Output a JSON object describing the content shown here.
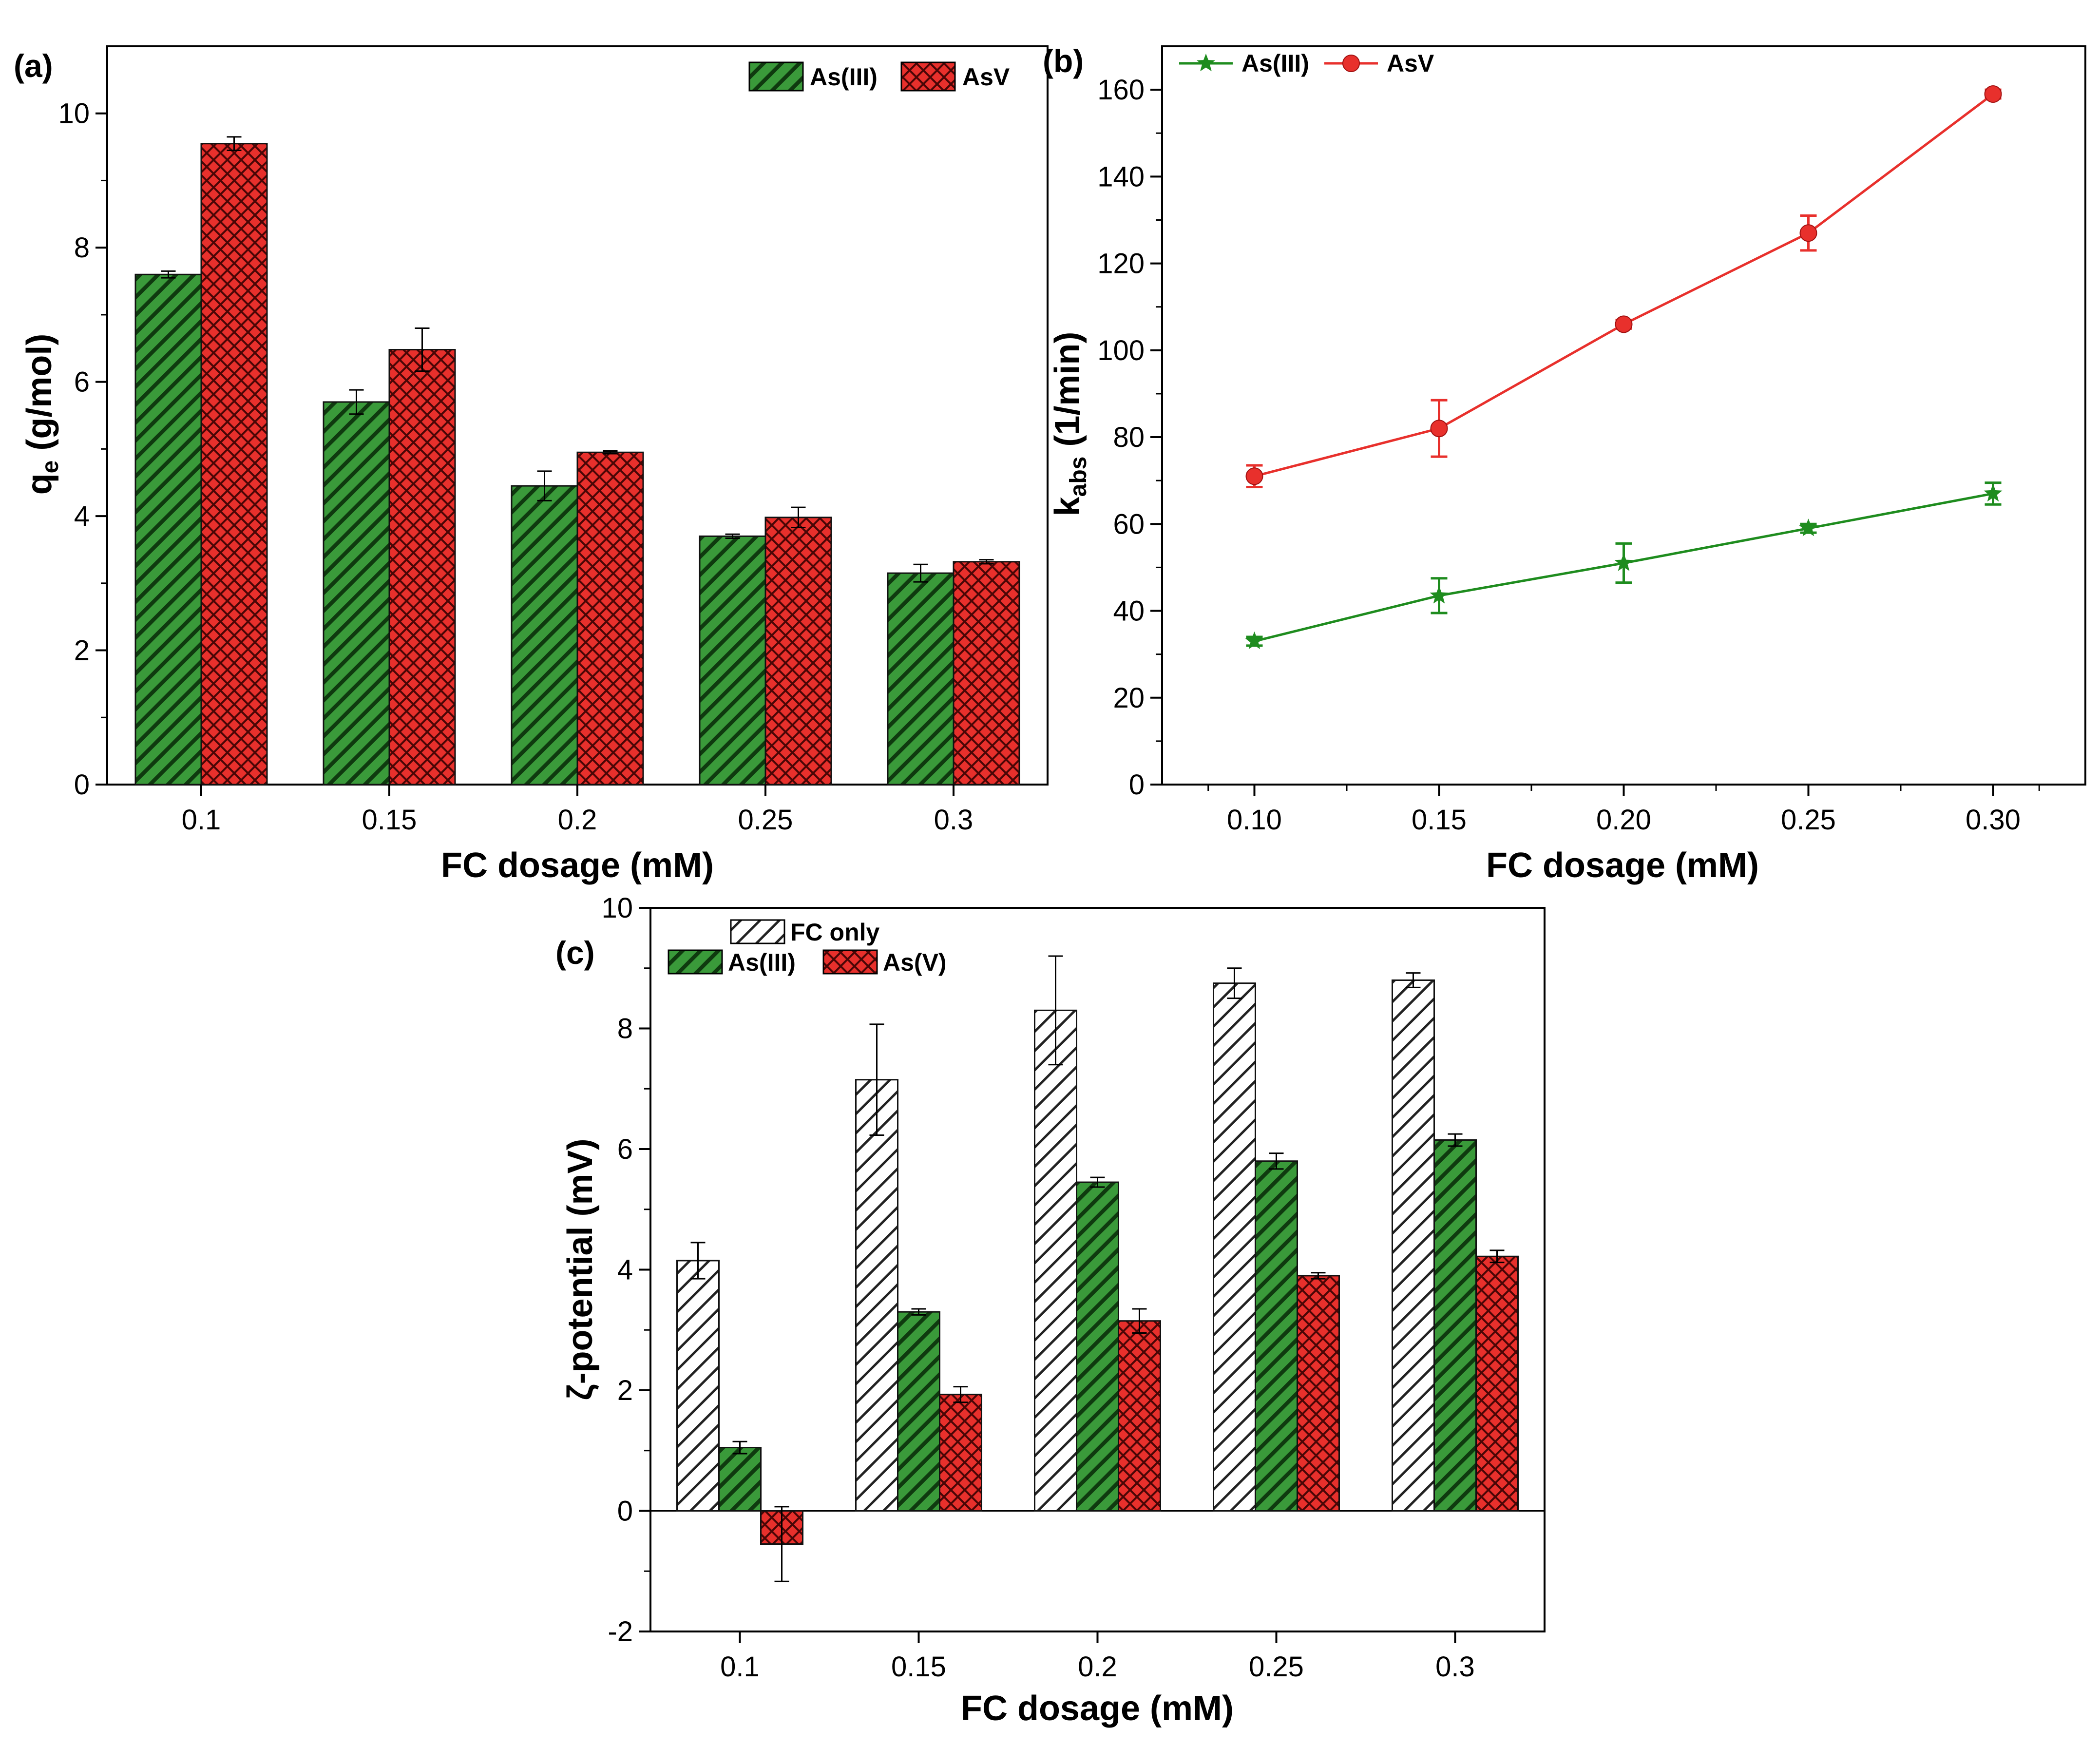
{
  "chart_data": [
    {
      "type": "bar",
      "panel_label": "(a)",
      "categories": [
        "0.1",
        "0.15",
        "0.2",
        "0.25",
        "0.3"
      ],
      "xlabel": "FC dosage (mM)",
      "ylabel": "q",
      "ylabel_sub": "e",
      "ylabel_suffix": " (g/mol)",
      "ylim": [
        0,
        11
      ],
      "yticks": [
        "0",
        "2",
        "4",
        "6",
        "8",
        "10"
      ],
      "legend_position": "top-right",
      "series": [
        {
          "name": "As(III)",
          "values": [
            7.6,
            5.7,
            4.45,
            3.7,
            3.15
          ],
          "errors": [
            0.05,
            0.18,
            0.22,
            0.03,
            0.13
          ],
          "color": "#3a9a3a",
          "pattern": "hatch-diagonal"
        },
        {
          "name": "AsV",
          "values": [
            9.55,
            6.48,
            4.95,
            3.98,
            3.32
          ],
          "errors": [
            0.1,
            0.32,
            0.02,
            0.15,
            0.03
          ],
          "color": "#e8302c",
          "pattern": "crosshatch"
        }
      ]
    },
    {
      "type": "line",
      "panel_label": "(b)",
      "x": [
        0.1,
        0.15,
        0.2,
        0.25,
        0.3
      ],
      "xticks": [
        "0.10",
        "0.15",
        "0.20",
        "0.25",
        "0.30"
      ],
      "xlim": [
        0.075,
        0.325
      ],
      "xlabel": "FC dosage (mM)",
      "ylabel": "k",
      "ylabel_sub": "abs",
      "ylabel_suffix": " (1/min)",
      "ylim": [
        0,
        170
      ],
      "yticks": [
        "0",
        "20",
        "40",
        "60",
        "80",
        "100",
        "120",
        "140",
        "160"
      ],
      "legend_position": "top-left",
      "series": [
        {
          "name": "As(III)",
          "values": [
            33,
            43.5,
            51,
            59,
            67
          ],
          "errors": [
            1,
            4,
            4.5,
            1,
            2.5
          ],
          "color": "#1e8c1e",
          "marker": "star"
        },
        {
          "name": "AsV",
          "values": [
            71,
            82,
            106,
            127,
            159
          ],
          "errors": [
            2.5,
            6.5,
            1,
            4,
            1
          ],
          "color": "#e8302c",
          "marker": "circle"
        }
      ]
    },
    {
      "type": "bar",
      "panel_label": "(c)",
      "categories": [
        "0.1",
        "0.15",
        "0.2",
        "0.25",
        "0.3"
      ],
      "xlabel": "FC dosage (mM)",
      "ylabel": "ζ-potential (mV)",
      "ylim": [
        -2,
        10
      ],
      "yticks": [
        "-2",
        "0",
        "2",
        "4",
        "6",
        "8",
        "10"
      ],
      "legend_position": "top-left",
      "series": [
        {
          "name": "FC only",
          "values": [
            4.15,
            7.15,
            8.3,
            8.75,
            8.8
          ],
          "errors": [
            0.3,
            0.92,
            0.9,
            0.25,
            0.12
          ],
          "color": "#ffffff",
          "pattern": "hatch-diagonal-black"
        },
        {
          "name": "As(III)",
          "values": [
            1.05,
            3.3,
            5.45,
            5.8,
            6.15
          ],
          "errors": [
            0.1,
            0.05,
            0.08,
            0.13,
            0.1
          ],
          "color": "#3a9a3a",
          "pattern": "hatch-diagonal"
        },
        {
          "name": "As(V)",
          "values": [
            -0.55,
            1.93,
            3.15,
            3.9,
            4.22
          ],
          "errors": [
            0.62,
            0.13,
            0.2,
            0.05,
            0.1
          ],
          "color": "#e8302c",
          "pattern": "crosshatch"
        }
      ]
    }
  ]
}
